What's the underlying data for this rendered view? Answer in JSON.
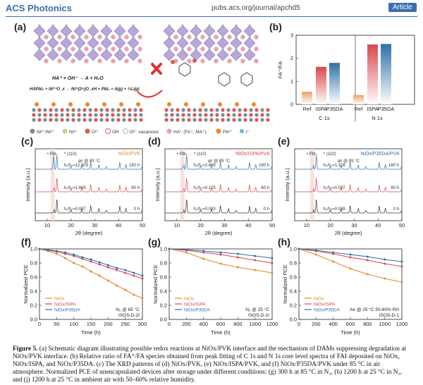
{
  "header": {
    "journal": "ACS Photonics",
    "url": "pubs.acs.org/journal/apchd5",
    "badge": "Article"
  },
  "panel_labels": [
    "(a)",
    "(b)",
    "(c)",
    "(d)",
    "(e)",
    "(f)",
    "(g)",
    "(h)"
  ],
  "panel_a": {
    "eq1": "HA⁺ + OH⁻ → A + H₂O",
    "eq2": "HAPbI₃ + Ni³⁺O_x → Ni^(2+)O_xH + PbI₂ + A(g) + ½I₂(g)",
    "legend": [
      "Ni³⁺/Ni²⁺",
      "Ni³⁺",
      "O²⁻",
      "OH",
      "O²⁻ vacancies",
      "HA⁺ (FA⁺, MA⁺)",
      "Pb²⁺",
      "I⁻"
    ],
    "colors": {
      "octa": "#b9a7d6",
      "pink": "#e89fb8",
      "ni": "#7d8a97",
      "orange": "#e8892b",
      "teal": "#3aa7a8"
    }
  },
  "xrd_common": {
    "legend_pbi2": "• PbI₂",
    "legend_110": "^ (110)",
    "air": "air @ 85 °C",
    "xlabel": "2θ (degree)",
    "ylabel": "Intensity (a.u.)",
    "xticks": [
      "10",
      "20",
      "30",
      "40",
      "50"
    ]
  },
  "pce_common": {
    "xlabel": "Time (h)",
    "ylabel": "Normalized PCE",
    "legend": [
      "NiOx",
      "NiOx/ISPA",
      "NiOx/P35DA"
    ]
  },
  "caption": {
    "label": "Figure 5.",
    "text": "(a) Schematic diagram illustrating possible redox reactions at NiOx/PVK interface and the mechanism of DAMs suppressing degradation at NiOx/PVK interface. (b) Relative ratio of FA⁺/FA species obtained from peak fitting of C 1s and N 1s core level spectra of FAI deposited on NiOx, NiOx/ISPA, and NiOx/P35DA. (c) The XRD patterns of (d) NiOx/PVK, (e) NiOx/ISPA/PVK, and (f) NiOx/P35DA/PVK under 85 °C in air atmosphere. Normalized PCE of unencapsulated devices after storage under different conditions: (g) 300 h at 85 °C in N₂, (h) 1200 h at 25 °C in N₂, and (j) 1200 h at 25 °C in ambient air with 50–60% relative humidity."
  },
  "chart_data": [
    {
      "panel": "b",
      "type": "bar",
      "groups": [
        "C 1s",
        "N 1s"
      ],
      "categories": [
        "Ref",
        "ISPA",
        "P35DA",
        "Ref",
        "ISPA",
        "P35DA"
      ],
      "values": [
        0.55,
        1.63,
        1.8,
        0.4,
        2.6,
        2.62
      ],
      "colors": [
        "#e8a26b",
        "#d9474f",
        "#2f6fa8",
        "#e8a26b",
        "#d9474f",
        "#2f6fa8"
      ],
      "ylabel": "FA⁺/FA",
      "ylim": [
        0,
        3
      ],
      "yticks": [
        0,
        1,
        2,
        3
      ]
    },
    {
      "panel": "c",
      "type": "line",
      "title": "NiOx/PVK",
      "title_color": "#e8892b",
      "xlim": [
        5,
        50
      ],
      "series": [
        {
          "name": "0 h",
          "ratio": "h₁/h₂=0.097",
          "color": "#333333"
        },
        {
          "name": "60 h",
          "ratio": "h₁/h₂=1.665",
          "color": "#d9474f"
        },
        {
          "name": "180 h",
          "ratio": "h₁/h₂=12.903",
          "color": "#2f6fa8"
        }
      ]
    },
    {
      "panel": "d",
      "type": "line",
      "title": "NiOx/ISPA/PVK",
      "title_color": "#d9474f",
      "xlim": [
        5,
        50
      ],
      "series": [
        {
          "name": "0 h",
          "ratio": "h₁/h₂=0.093",
          "color": "#333333"
        },
        {
          "name": "60 h",
          "ratio": "h₁/h₂=0.103",
          "color": "#d9474f"
        },
        {
          "name": "180 h",
          "ratio": "h₁/h₂=2.469",
          "color": "#2f6fa8"
        }
      ]
    },
    {
      "panel": "e",
      "type": "line",
      "title": "NiOx/P35DA/PVK",
      "title_color": "#2f6fa8",
      "xlim": [
        5,
        50
      ],
      "series": [
        {
          "name": "0 h",
          "ratio": "h₁/h₂=0.088",
          "color": "#333333"
        },
        {
          "name": "60 h",
          "ratio": "h₁/h₂=0.097",
          "color": "#d9474f"
        },
        {
          "name": "180 h",
          "ratio": "h₁/h₂=1.328",
          "color": "#2f6fa8"
        }
      ]
    },
    {
      "panel": "f",
      "type": "line",
      "condition": "N₂ @ 85 °C",
      "protocol": "ISOS-D-2I",
      "xlim": [
        0,
        300
      ],
      "ylim": [
        0,
        1.0
      ],
      "xticks": [
        0,
        50,
        100,
        150,
        200,
        250,
        300
      ],
      "yticks": [
        0.0,
        0.2,
        0.4,
        0.6,
        0.8,
        1.0
      ],
      "x": [
        0,
        25,
        50,
        75,
        100,
        125,
        150,
        175,
        200,
        225,
        250,
        275,
        300
      ],
      "series": [
        {
          "name": "NiOx",
          "color": "#e8892b",
          "values": [
            1.0,
            0.97,
            0.93,
            0.87,
            0.8,
            0.75,
            0.68,
            0.62,
            0.55,
            0.48,
            0.42,
            0.35,
            0.3
          ]
        },
        {
          "name": "NiOx/ISPA",
          "color": "#d9474f",
          "values": [
            1.0,
            0.98,
            0.96,
            0.93,
            0.9,
            0.86,
            0.82,
            0.78,
            0.74,
            0.7,
            0.66,
            0.62,
            0.58
          ]
        },
        {
          "name": "NiOx/P35DA",
          "color": "#2f6fa8",
          "values": [
            1.0,
            0.99,
            0.97,
            0.95,
            0.92,
            0.88,
            0.85,
            0.81,
            0.77,
            0.73,
            0.7,
            0.66,
            0.62
          ]
        }
      ]
    },
    {
      "panel": "g",
      "type": "line",
      "condition": "N₂ @ 25 °C",
      "protocol": "ISOS-D-1I",
      "xlim": [
        0,
        1200
      ],
      "ylim": [
        0,
        1.0
      ],
      "xticks": [
        0,
        200,
        400,
        600,
        800,
        1000,
        1200
      ],
      "yticks": [
        0.0,
        0.2,
        0.4,
        0.6,
        0.8,
        1.0
      ],
      "x": [
        0,
        200,
        400,
        600,
        800,
        1000,
        1200
      ],
      "series": [
        {
          "name": "NiOx",
          "color": "#e8892b",
          "values": [
            1.0,
            0.95,
            0.86,
            0.79,
            0.74,
            0.7,
            0.66
          ]
        },
        {
          "name": "NiOx/ISPA",
          "color": "#d9474f",
          "values": [
            1.0,
            0.98,
            0.95,
            0.92,
            0.88,
            0.84,
            0.8
          ]
        },
        {
          "name": "NiOx/P35DA",
          "color": "#2f6fa8",
          "values": [
            1.0,
            0.99,
            0.97,
            0.95,
            0.93,
            0.9,
            0.87
          ]
        }
      ]
    },
    {
      "panel": "h",
      "type": "line",
      "condition": "Air @ 25 °C  50-60% RH",
      "protocol": "ISOS-D-1",
      "xlim": [
        0,
        1200
      ],
      "ylim": [
        0,
        1.0
      ],
      "xticks": [
        0,
        200,
        400,
        600,
        800,
        1000,
        1200
      ],
      "yticks": [
        0.0,
        0.2,
        0.4,
        0.6,
        0.8,
        1.0
      ],
      "x": [
        0,
        200,
        400,
        600,
        800,
        1000,
        1200
      ],
      "series": [
        {
          "name": "NiOx",
          "color": "#e8892b",
          "values": [
            1.0,
            0.92,
            0.82,
            0.72,
            0.64,
            0.58,
            0.53
          ]
        },
        {
          "name": "NiOx/ISPA",
          "color": "#d9474f",
          "values": [
            1.0,
            0.97,
            0.93,
            0.88,
            0.84,
            0.79,
            0.75
          ]
        },
        {
          "name": "NiOx/P35DA",
          "color": "#2f6fa8",
          "values": [
            1.0,
            0.98,
            0.95,
            0.92,
            0.89,
            0.85,
            0.82
          ]
        }
      ]
    }
  ]
}
